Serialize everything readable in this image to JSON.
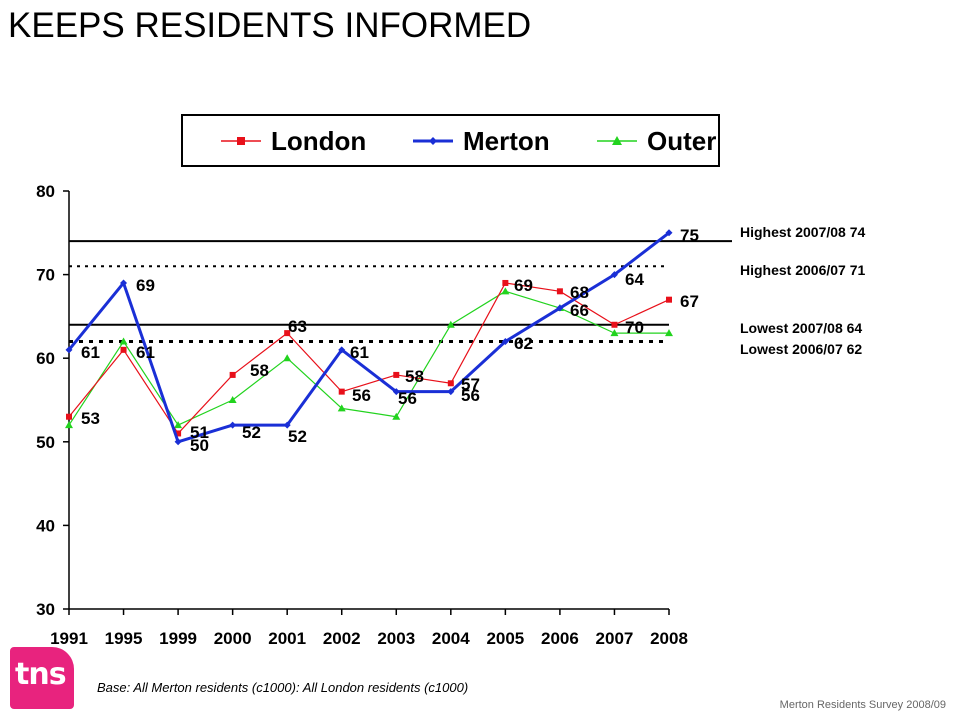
{
  "title": "KEEPS RESIDENTS INFORMED",
  "legend": {
    "london": "London",
    "merton": "Merton",
    "outer": "Outer"
  },
  "reference_lines": {
    "highest_2007_08": "Highest 2007/08 74",
    "highest_2006_07": "Highest 2006/07 71",
    "lowest_2007_08": "Lowest 2007/08 64",
    "lowest_2006_07": "Lowest 2006/07 62"
  },
  "footnote": {
    "part1": "Base: All Merton residents (c1000)",
    "part2": ": All London residents (c1000)"
  },
  "source": "Merton Residents Survey 2008/09",
  "logo": "tns",
  "colors": {
    "london": "#e8101a",
    "merton": "#1a2fd6",
    "outer": "#22d31e",
    "logo": "#e8237e"
  },
  "chart_data": {
    "type": "line",
    "categories": [
      "1991",
      "1995",
      "1999",
      "2000",
      "2001",
      "2002",
      "2003",
      "2004",
      "2005",
      "2006",
      "2007",
      "2008"
    ],
    "ylim": [
      30,
      80
    ],
    "yticks": [
      30,
      40,
      50,
      60,
      70,
      80
    ],
    "series": [
      {
        "name": "London",
        "values": [
          53,
          61,
          51,
          58,
          63,
          56,
          58,
          57,
          69,
          68,
          64,
          67
        ]
      },
      {
        "name": "Merton",
        "values": [
          61,
          69,
          50,
          52,
          52,
          61,
          56,
          56,
          62,
          66,
          70,
          75
        ]
      },
      {
        "name": "Outer",
        "values": [
          52,
          62,
          52,
          55,
          60,
          54,
          53,
          64,
          68,
          66,
          63,
          63
        ]
      }
    ],
    "data_labels": [
      {
        "x": "1991",
        "text": "53"
      },
      {
        "x": "1991",
        "text": "61"
      },
      {
        "x": "1995",
        "text": "69"
      },
      {
        "x": "1995",
        "text": "61"
      },
      {
        "x": "1999",
        "text": "51"
      },
      {
        "x": "1999",
        "text": "50"
      },
      {
        "x": "2000",
        "text": "58"
      },
      {
        "x": "2000",
        "text": "52"
      },
      {
        "x": "2001",
        "text": "63"
      },
      {
        "x": "2001",
        "text": "52"
      },
      {
        "x": "2002",
        "text": "61"
      },
      {
        "x": "2002",
        "text": "56"
      },
      {
        "x": "2003",
        "text": "58"
      },
      {
        "x": "2003",
        "text": "56"
      },
      {
        "x": "2004",
        "text": "57"
      },
      {
        "x": "2004",
        "text": "56"
      },
      {
        "x": "2005",
        "text": "69"
      },
      {
        "x": "2005",
        "text": "62"
      },
      {
        "x": "2006",
        "text": "68"
      },
      {
        "x": "2006",
        "text": "66"
      },
      {
        "x": "2007",
        "text": "70"
      },
      {
        "x": "2007",
        "text": "64"
      },
      {
        "x": "2008",
        "text": "75"
      },
      {
        "x": "2008",
        "text": "67"
      }
    ],
    "reference_values": {
      "highest_2007_08": 74,
      "highest_2006_07": 71,
      "lowest_2007_08": 64,
      "lowest_2006_07": 62
    },
    "legend_position": "top"
  }
}
